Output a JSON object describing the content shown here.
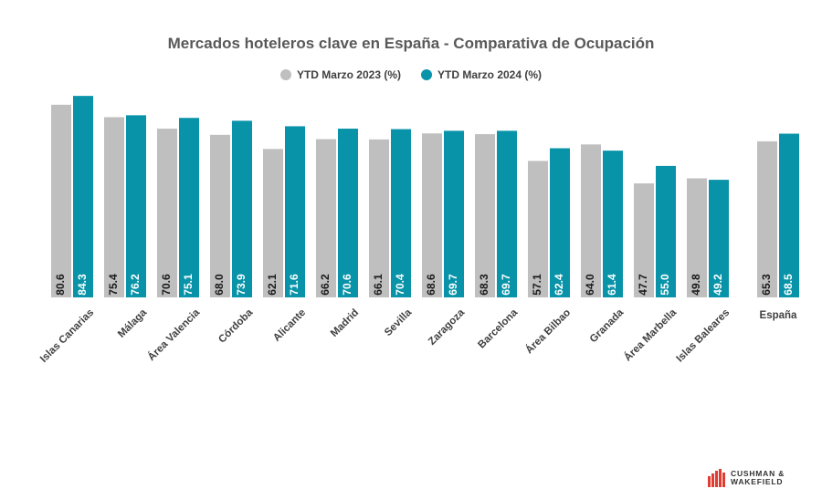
{
  "title": "Mercados hoteleros clave en España - Comparativa de Ocupación",
  "legend": {
    "items": [
      {
        "label": "YTD Marzo 2023 (%)",
        "color": "#bfbfbf"
      },
      {
        "label": "YTD Marzo 2024 (%)",
        "color": "#0893a8"
      }
    ],
    "placement": "top-center"
  },
  "logo": {
    "line1": "CUSHMAN &",
    "line2": "WAKEFIELD",
    "color": "#e03c31"
  },
  "chart_data": {
    "type": "bar",
    "categories": [
      "Islas Canarias",
      "Málaga",
      "Área Valencia",
      "Córdoba",
      "Alicante",
      "Madrid",
      "Sevilla",
      "Zaragoza",
      "Barcelona",
      "Área Bilbao",
      "Granada",
      "Área Marbella",
      "Islas Baleares",
      "España"
    ],
    "series": [
      {
        "name": "YTD Marzo 2023 (%)",
        "color": "#bfbfbf",
        "label_color": "#1a1a1a",
        "values": [
          80.6,
          75.4,
          70.6,
          68.0,
          62.1,
          66.2,
          66.1,
          68.6,
          68.3,
          57.1,
          64.0,
          47.7,
          49.8,
          65.3
        ],
        "labels": [
          "80.6",
          "75.4",
          "70.6",
          "68.0",
          "62.1",
          "66.2",
          "66.1",
          "68.6",
          "68.3",
          "57.1",
          "64.0",
          "47.7",
          "49.8",
          "65.3"
        ]
      },
      {
        "name": "YTD Marzo 2024 (%)",
        "color": "#0893a8",
        "label_color": "#ffffff",
        "values": [
          84.3,
          76.2,
          75.1,
          73.9,
          71.6,
          70.6,
          70.4,
          69.7,
          69.7,
          62.4,
          61.4,
          55.0,
          49.2,
          68.5
        ],
        "labels": [
          "84.3",
          "76.2",
          "75.1",
          "73.9",
          "71.6",
          "70.6",
          "70.4",
          "69.7",
          "69.7",
          "62.4",
          "61.4",
          "55.0",
          "49.2",
          "68.5"
        ]
      }
    ],
    "grid": false,
    "y_axis_visible": false,
    "ylim": [
      0,
      87
    ]
  }
}
